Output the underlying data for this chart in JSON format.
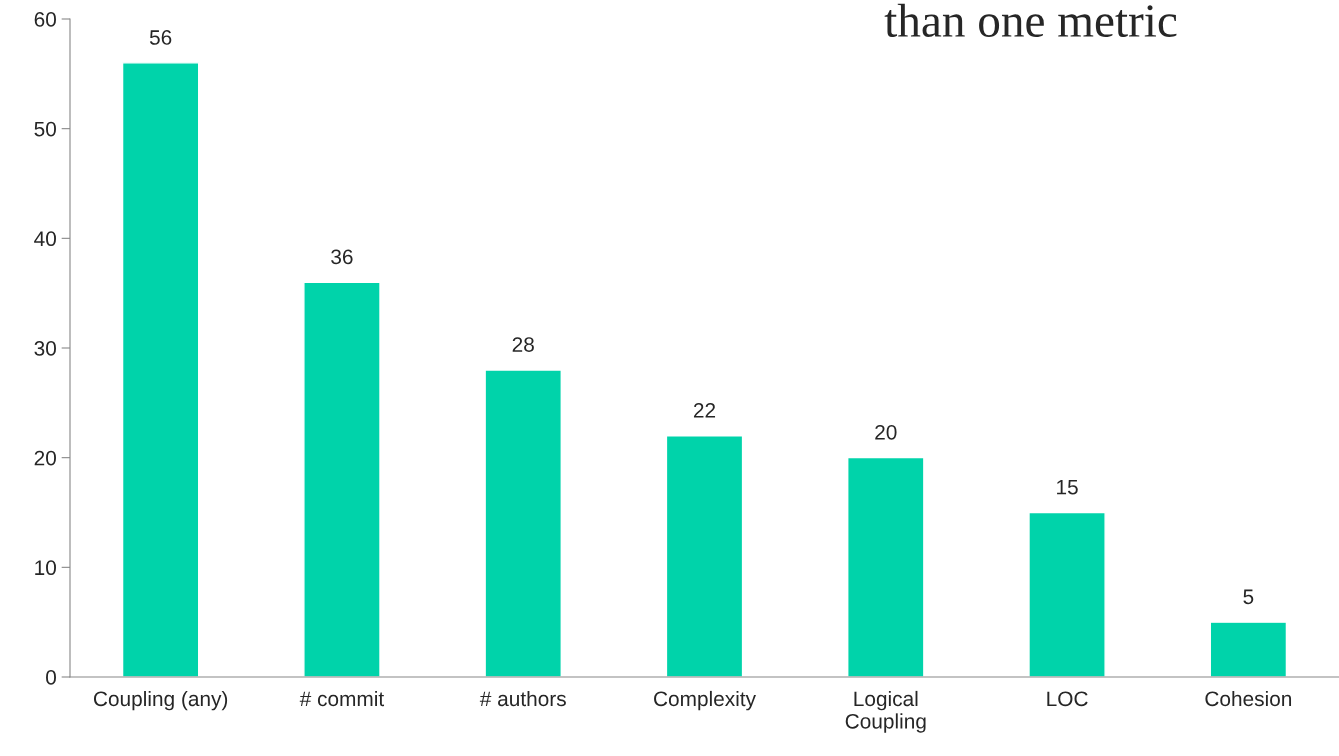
{
  "chart_data": {
    "type": "bar",
    "categories": [
      "Coupling (any)",
      "# commit",
      "# authors",
      "Complexity",
      "Logical\nCoupling",
      "LOC",
      "Cohesion"
    ],
    "values": [
      56,
      36,
      28,
      22,
      20,
      15,
      5
    ],
    "color": "#00d3aa",
    "ylim": [
      0,
      60
    ],
    "yticks": [
      0,
      10,
      20,
      30,
      40,
      50,
      60
    ],
    "data_labels": true,
    "grid": false,
    "legend": false,
    "annotations": [
      "than one metric"
    ]
  }
}
